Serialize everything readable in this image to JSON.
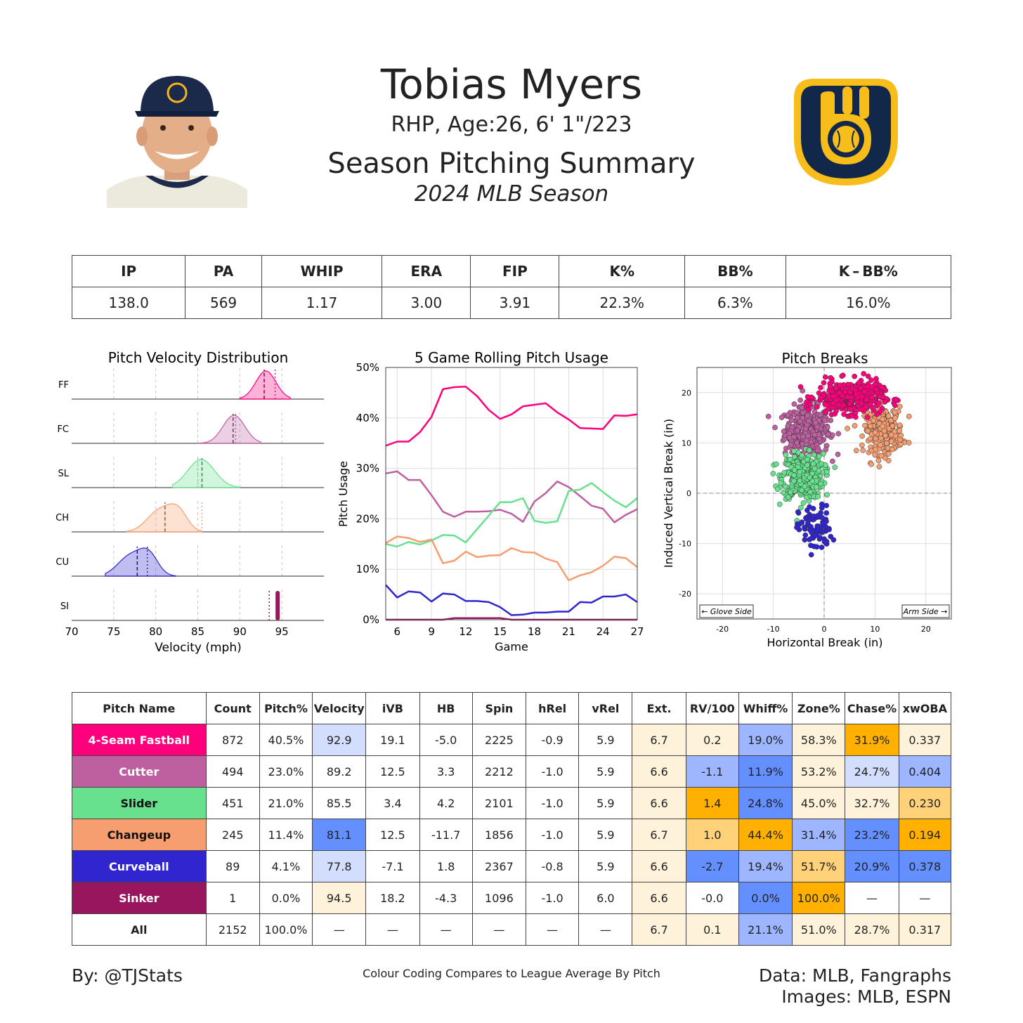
{
  "header": {
    "player_name": "Tobias Myers",
    "player_info": "RHP, Age:26, 6' 1\"/223",
    "summary_title": "Season Pitching Summary",
    "season_label": "2024 MLB Season"
  },
  "stats_table": {
    "headers": [
      "IP",
      "PA",
      "WHIP",
      "ERA",
      "FIP",
      "K%",
      "BB%",
      "K – BB%"
    ],
    "values": [
      "138.0",
      "569",
      "1.17",
      "3.00",
      "3.91",
      "22.3%",
      "6.3%",
      "16.0%"
    ]
  },
  "colors": {
    "FF": "#FF007D",
    "FC": "#BE5FA0",
    "SL": "#67E18D",
    "CH": "#F79E70",
    "CU": "#3025CE",
    "SI": "#98165D",
    "high": "#FFB000",
    "mid_high": "#FFD27A",
    "light_high": "#FEF3DA",
    "low": "#648FFF",
    "mid_low": "#9DB6FF",
    "light_low": "#D3DEFF"
  },
  "chart_data": [
    {
      "type": "area",
      "title": "Pitch Velocity Distribution",
      "xlabel": "Velocity (mph)",
      "ylabel": "",
      "xlim": [
        70,
        100
      ],
      "xticks": [
        70,
        75,
        80,
        85,
        90,
        95
      ],
      "series": [
        {
          "name": "FF",
          "components": [
            [
              93.1,
              1.2,
              1.0
            ]
          ],
          "range": [
            90.0,
            96.0
          ],
          "mean": 92.9,
          "league_mean": 94.2
        },
        {
          "name": "FC",
          "components": [
            [
              89.3,
              1.3,
              1.0
            ]
          ],
          "range": [
            85.0,
            92.5
          ],
          "mean": 89.2,
          "league_mean": 89.5
        },
        {
          "name": "SL",
          "components": [
            [
              85.4,
              1.6,
              1.0
            ]
          ],
          "range": [
            82.0,
            90.0
          ],
          "mean": 85.5,
          "league_mean": 85.0
        },
        {
          "name": "CH",
          "components": [
            [
              80.5,
              1.5,
              1.0
            ],
            [
              82.7,
              1.1,
              0.85
            ]
          ],
          "range": [
            76.5,
            85.5
          ],
          "mean": 81.1,
          "league_mean": 85.5
        },
        {
          "name": "CU",
          "components": [
            [
              77.0,
              1.5,
              1.0
            ],
            [
              79.2,
              1.1,
              0.95
            ]
          ],
          "range": [
            74.0,
            82.4
          ],
          "mean": 77.8,
          "league_mean": 79.0
        },
        {
          "name": "SI",
          "components": [],
          "range": [
            94.5,
            94.5
          ],
          "mean": 94.5,
          "league_mean": 93.5
        }
      ]
    },
    {
      "type": "line",
      "title": "5 Game Rolling Pitch Usage",
      "xlabel": "Game",
      "ylabel": "Pitch Usage",
      "xlim": [
        5,
        27
      ],
      "ylim": [
        0,
        50
      ],
      "xticks": [
        6,
        9,
        12,
        15,
        18,
        21,
        24,
        27
      ],
      "yticks": [
        "0%",
        "10%",
        "20%",
        "30%",
        "40%",
        "50%"
      ],
      "x": [
        5,
        6,
        7,
        8,
        9,
        10,
        11,
        12,
        13,
        14,
        15,
        16,
        17,
        18,
        19,
        20,
        21,
        22,
        23,
        24,
        25,
        26,
        27
      ],
      "series": [
        {
          "name": "FF",
          "values": [
            34.5,
            35.3,
            35.3,
            37.2,
            40.2,
            45.7,
            46.1,
            46.2,
            44.3,
            41.6,
            39.8,
            40.7,
            42.3,
            42.6,
            42.9,
            41.1,
            39.7,
            38.0,
            37.9,
            37.8,
            40.5,
            40.4,
            40.7
          ]
        },
        {
          "name": "FC",
          "values": [
            29.0,
            29.4,
            27.7,
            27.7,
            24.7,
            21.4,
            20.4,
            21.4,
            21.4,
            21.5,
            21.8,
            21.0,
            19.4,
            23.4,
            25.1,
            27.4,
            26.3,
            24.5,
            22.6,
            22.0,
            19.3,
            20.8,
            21.9
          ]
        },
        {
          "name": "SL",
          "values": [
            15.0,
            14.5,
            15.4,
            14.9,
            15.7,
            16.8,
            16.7,
            15.3,
            18.0,
            20.6,
            23.3,
            23.3,
            24.1,
            19.6,
            19.2,
            19.5,
            25.5,
            25.8,
            27.1,
            25.3,
            23.6,
            22.3,
            24.1
          ]
        },
        {
          "name": "CH",
          "values": [
            15.2,
            16.5,
            16.2,
            15.4,
            15.9,
            11.2,
            11.7,
            13.5,
            12.4,
            12.7,
            12.8,
            14.2,
            13.4,
            13.3,
            12.1,
            11.4,
            7.8,
            8.8,
            9.4,
            10.7,
            12.5,
            12.2,
            10.4
          ]
        },
        {
          "name": "CU",
          "values": [
            6.9,
            4.4,
            5.6,
            5.4,
            3.6,
            5.2,
            5.0,
            3.7,
            3.7,
            3.5,
            2.5,
            0.9,
            1.0,
            1.4,
            1.4,
            1.6,
            1.6,
            3.5,
            3.4,
            4.6,
            4.6,
            5.0,
            3.5
          ]
        },
        {
          "name": "SI",
          "values": [
            0.0,
            0.0,
            0.0,
            0.0,
            0.0,
            0.0,
            0.3,
            0.3,
            0.3,
            0.3,
            0.3,
            0.0,
            0.0,
            0.0,
            0.0,
            0.0,
            0.0,
            0.0,
            0.0,
            0.0,
            0.0,
            0.0,
            0.0
          ]
        }
      ]
    },
    {
      "type": "scatter",
      "title": "Pitch Breaks",
      "xlabel": "Horizontal Break (in)",
      "ylabel": "Induced Vertical Break (in)",
      "xlim": [
        -25,
        25
      ],
      "ylim": [
        -25,
        25
      ],
      "xticks": [
        -20,
        -10,
        0,
        10,
        20
      ],
      "yticks": [
        -20,
        -10,
        0,
        10,
        20
      ],
      "annotations": {
        "left": "← Glove Side",
        "right": "Arm Side →"
      },
      "clusters": [
        {
          "name": "FF",
          "count": 872,
          "mean_hb": 5.0,
          "mean_ivb": 19.1,
          "sd_hb": 3.2,
          "sd_ivb": 1.6
        },
        {
          "name": "FC",
          "count": 494,
          "mean_hb": -3.3,
          "mean_ivb": 12.5,
          "sd_hb": 2.2,
          "sd_ivb": 2.4
        },
        {
          "name": "SL",
          "count": 451,
          "mean_hb": -4.2,
          "mean_ivb": 3.4,
          "sd_hb": 2.0,
          "sd_ivb": 2.2
        },
        {
          "name": "CH",
          "count": 245,
          "mean_hb": 11.7,
          "mean_ivb": 12.5,
          "sd_hb": 1.9,
          "sd_ivb": 2.3
        },
        {
          "name": "CU",
          "count": 89,
          "mean_hb": -1.8,
          "mean_ivb": -7.1,
          "sd_hb": 1.6,
          "sd_ivb": 2.3
        },
        {
          "name": "SI",
          "count": 1,
          "mean_hb": 4.3,
          "mean_ivb": 18.2,
          "sd_hb": 0,
          "sd_ivb": 0
        }
      ]
    },
    {
      "type": "table",
      "columns": [
        "Pitch Name",
        "Count",
        "Pitch%",
        "Velocity",
        "iVB",
        "HB",
        "Spin",
        "hRel",
        "vRel",
        "Ext.",
        "RV/100",
        "Whiff%",
        "Zone%",
        "Chase%",
        "xwOBA"
      ],
      "rows": [
        {
          "key": "FF",
          "name": "4-Seam Fastball",
          "cells": [
            "872",
            "40.5%",
            "92.9",
            "19.1",
            "-5.0",
            "2225",
            "-0.9",
            "5.9",
            "6.7",
            "0.2",
            "19.0%",
            "58.3%",
            "31.9%",
            "0.337"
          ],
          "shade": [
            "",
            "",
            "light_low",
            "",
            "",
            "",
            "",
            "",
            "light_high",
            "light_high",
            "mid_low",
            "light_high",
            "high",
            "light_high"
          ]
        },
        {
          "key": "FC",
          "name": "Cutter",
          "cells": [
            "494",
            "23.0%",
            "89.2",
            "12.5",
            "3.3",
            "2212",
            "-1.0",
            "5.9",
            "6.6",
            "-1.1",
            "11.9%",
            "53.2%",
            "24.7%",
            "0.404"
          ],
          "shade": [
            "",
            "",
            "",
            "",
            "",
            "",
            "",
            "",
            "light_high",
            "mid_low",
            "low",
            "light_high",
            "light_low",
            "mid_low"
          ]
        },
        {
          "key": "SL",
          "name": "Slider",
          "cells": [
            "451",
            "21.0%",
            "85.5",
            "3.4",
            "4.2",
            "2101",
            "-1.0",
            "5.9",
            "6.6",
            "1.4",
            "24.8%",
            "45.0%",
            "32.7%",
            "0.230"
          ],
          "shade": [
            "",
            "",
            "",
            "",
            "",
            "",
            "",
            "",
            "light_high",
            "high",
            "low",
            "light_high",
            "light_high",
            "mid_high"
          ]
        },
        {
          "key": "CH",
          "name": "Changeup",
          "cells": [
            "245",
            "11.4%",
            "81.1",
            "12.5",
            "-11.7",
            "1856",
            "-1.0",
            "5.9",
            "6.7",
            "1.0",
            "44.4%",
            "31.4%",
            "23.2%",
            "0.194"
          ],
          "shade": [
            "",
            "",
            "low",
            "",
            "",
            "",
            "",
            "",
            "light_high",
            "mid_high",
            "high",
            "mid_low",
            "low",
            "high"
          ]
        },
        {
          "key": "CU",
          "name": "Curveball",
          "cells": [
            "89",
            "4.1%",
            "77.8",
            "-7.1",
            "1.8",
            "2367",
            "-0.8",
            "5.9",
            "6.6",
            "-2.7",
            "19.4%",
            "51.7%",
            "20.9%",
            "0.378"
          ],
          "shade": [
            "",
            "",
            "light_low",
            "",
            "",
            "",
            "",
            "",
            "light_high",
            "low",
            "mid_low",
            "mid_high",
            "low",
            "low"
          ]
        },
        {
          "key": "SI",
          "name": "Sinker",
          "cells": [
            "1",
            "0.0%",
            "94.5",
            "18.2",
            "-4.3",
            "1096",
            "-1.0",
            "6.0",
            "6.6",
            "-0.0",
            "0.0%",
            "100.0%",
            "—",
            "—"
          ],
          "shade": [
            "",
            "",
            "light_high",
            "",
            "",
            "",
            "",
            "",
            "light_high",
            "",
            "low",
            "high",
            "",
            ""
          ]
        },
        {
          "key": "ALL",
          "name": "All",
          "cells": [
            "2152",
            "100.0%",
            "—",
            "—",
            "—",
            "—",
            "—",
            "—",
            "6.7",
            "0.1",
            "21.1%",
            "51.0%",
            "28.7%",
            "0.317"
          ],
          "shade": [
            "",
            "",
            "",
            "",
            "",
            "",
            "",
            "",
            "light_high",
            "light_high",
            "mid_low",
            "light_high",
            "light_high",
            "light_high"
          ]
        }
      ]
    }
  ],
  "footer": {
    "byline": "By: @TJStats",
    "note": "Colour Coding Compares to League Average By Pitch",
    "data_source": "Data: MLB, Fangraphs",
    "image_source": "Images: MLB, ESPN"
  }
}
